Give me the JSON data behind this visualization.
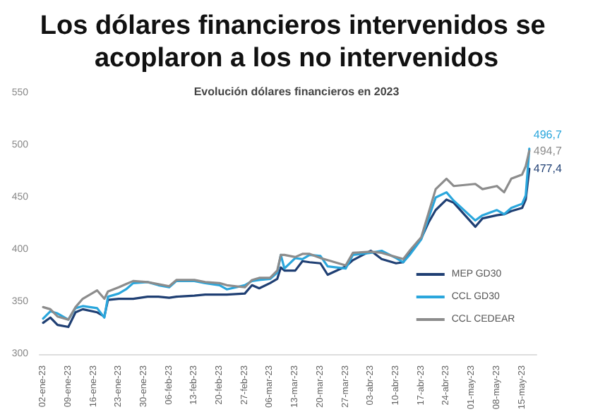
{
  "chart_data": {
    "type": "line",
    "title": "Los dólares financieros intervenidos se acoplaron a los no intervenidos",
    "subtitle": "Evolución dólares financieros en 2023",
    "x": [
      "2023-01-02",
      "2023-01-04",
      "2023-01-06",
      "2023-01-09",
      "2023-01-11",
      "2023-01-13",
      "2023-01-17",
      "2023-01-19",
      "2023-01-20",
      "2023-01-23",
      "2023-01-25",
      "2023-01-27",
      "2023-01-31",
      "2023-02-03",
      "2023-02-06",
      "2023-02-08",
      "2023-02-13",
      "2023-02-16",
      "2023-02-20",
      "2023-02-22",
      "2023-02-27",
      "2023-03-01",
      "2023-03-03",
      "2023-03-06",
      "2023-03-08",
      "2023-03-09",
      "2023-03-10",
      "2023-03-13",
      "2023-03-15",
      "2023-03-17",
      "2023-03-20",
      "2023-03-22",
      "2023-03-27",
      "2023-03-29",
      "2023-04-03",
      "2023-04-06",
      "2023-04-10",
      "2023-04-12",
      "2023-04-14",
      "2023-04-17",
      "2023-04-19",
      "2023-04-21",
      "2023-04-24",
      "2023-04-26",
      "2023-05-02",
      "2023-05-04",
      "2023-05-08",
      "2023-05-10",
      "2023-05-12",
      "2023-05-15",
      "2023-05-16",
      "2023-05-17"
    ],
    "series": [
      {
        "name": "MEP GD30",
        "color": "#1f3f73",
        "values": [
          330,
          335,
          328,
          326,
          340,
          343,
          340,
          336,
          352,
          353,
          353,
          353,
          355,
          355,
          354,
          355,
          356,
          357,
          357,
          357,
          358,
          366,
          363,
          368,
          372,
          383,
          380,
          380,
          389,
          388,
          387,
          376,
          384,
          390,
          399,
          391,
          387,
          388,
          399,
          411,
          426,
          438,
          448,
          445,
          422,
          430,
          433,
          434,
          437,
          440,
          448,
          477.4
        ],
        "value_labels": [
          null,
          null,
          null,
          null,
          null,
          null,
          null,
          null,
          null,
          null,
          null,
          null,
          null,
          null,
          null,
          null,
          null,
          null,
          null,
          null,
          null,
          null,
          null,
          null,
          null,
          null,
          null,
          null,
          null,
          null,
          null,
          null,
          null,
          null,
          null,
          null,
          null,
          null,
          null,
          null,
          null,
          null,
          null,
          null,
          null,
          null,
          null,
          null,
          null,
          null,
          null,
          "477,4"
        ]
      },
      {
        "name": "CCL GD30",
        "color": "#2aa6dc",
        "values": [
          334,
          341,
          339,
          333,
          344,
          346,
          344,
          335,
          355,
          358,
          362,
          368,
          369,
          366,
          364,
          370,
          370,
          368,
          366,
          362,
          366,
          370,
          371,
          372,
          378,
          395,
          382,
          392,
          391,
          395,
          394,
          384,
          382,
          395,
          397,
          399,
          392,
          388,
          396,
          410,
          430,
          450,
          455,
          447,
          428,
          433,
          438,
          434,
          440,
          444,
          452,
          496.7
        ],
        "value_labels": [
          null,
          null,
          null,
          null,
          null,
          null,
          null,
          null,
          null,
          null,
          null,
          null,
          null,
          null,
          null,
          null,
          null,
          null,
          null,
          null,
          null,
          null,
          null,
          null,
          null,
          null,
          null,
          null,
          null,
          null,
          null,
          null,
          null,
          null,
          null,
          null,
          null,
          null,
          null,
          null,
          null,
          null,
          null,
          null,
          null,
          null,
          null,
          null,
          null,
          null,
          null,
          "496,7"
        ]
      },
      {
        "name": "CCL CEDEAR",
        "color": "#8c8c8c",
        "values": [
          345,
          343,
          336,
          333,
          345,
          353,
          361,
          353,
          360,
          364,
          367,
          370,
          369,
          367,
          365,
          371,
          371,
          369,
          368,
          366,
          364,
          371,
          373,
          373,
          380,
          395,
          395,
          393,
          396,
          396,
          392,
          390,
          385,
          397,
          398,
          397,
          393,
          391,
          400,
          412,
          435,
          458,
          468,
          461,
          463,
          458,
          461,
          455,
          468,
          472,
          480,
          494.7
        ],
        "value_labels": [
          null,
          null,
          null,
          null,
          null,
          null,
          null,
          null,
          null,
          null,
          null,
          null,
          null,
          null,
          null,
          null,
          null,
          null,
          null,
          null,
          null,
          null,
          null,
          null,
          null,
          null,
          null,
          null,
          null,
          null,
          null,
          null,
          null,
          null,
          null,
          null,
          null,
          null,
          null,
          null,
          null,
          null,
          null,
          null,
          null,
          null,
          null,
          null,
          null,
          null,
          null,
          "494,7"
        ]
      }
    ],
    "xlim": [
      "2023-01-01",
      "2023-05-19"
    ],
    "xticks": [
      {
        "value": "2023-01-02",
        "label": "02-ene-23"
      },
      {
        "value": "2023-01-09",
        "label": "09-ene-23"
      },
      {
        "value": "2023-01-16",
        "label": "16-ene-23"
      },
      {
        "value": "2023-01-23",
        "label": "23-ene-23"
      },
      {
        "value": "2023-01-30",
        "label": "30-ene-23"
      },
      {
        "value": "2023-02-06",
        "label": "06-feb-23"
      },
      {
        "value": "2023-02-13",
        "label": "13-feb-23"
      },
      {
        "value": "2023-02-20",
        "label": "20-feb-23"
      },
      {
        "value": "2023-02-27",
        "label": "27-feb-23"
      },
      {
        "value": "2023-03-06",
        "label": "06-mar-23"
      },
      {
        "value": "2023-03-13",
        "label": "13-mar-23"
      },
      {
        "value": "2023-03-20",
        "label": "20-mar-23"
      },
      {
        "value": "2023-03-27",
        "label": "27-mar-23"
      },
      {
        "value": "2023-04-03",
        "label": "03-abr-23"
      },
      {
        "value": "2023-04-10",
        "label": "10-abr-23"
      },
      {
        "value": "2023-04-17",
        "label": "17-abr-23"
      },
      {
        "value": "2023-04-24",
        "label": "24-abr-23"
      },
      {
        "value": "2023-05-01",
        "label": "01-may-23"
      },
      {
        "value": "2023-05-08",
        "label": "08-may-23"
      },
      {
        "value": "2023-05-15",
        "label": "15-may-23"
      }
    ],
    "ylim": [
      300,
      550
    ],
    "yticks": [
      300,
      350,
      400,
      450,
      500,
      550
    ],
    "grid": false,
    "legend": "bottom right",
    "marker": "none",
    "line_style": "solid"
  }
}
